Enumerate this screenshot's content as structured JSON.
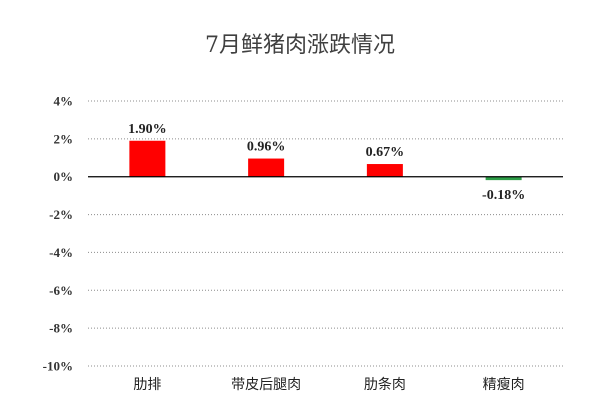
{
  "chart_data": {
    "type": "bar",
    "title": "7月鲜猪肉涨跌情况",
    "categories": [
      "肋排",
      "带皮后腿肉",
      "肋条肉",
      "精瘦肉"
    ],
    "values": [
      1.9,
      0.96,
      0.67,
      -0.18
    ],
    "data_labels": [
      "1.90%",
      "0.96%",
      "0.67%",
      "-0.18%"
    ],
    "ylim": [
      -10,
      4
    ],
    "yticks": [
      4,
      2,
      0,
      -2,
      -4,
      -6,
      -8,
      -10
    ],
    "ytick_labels": [
      "4%",
      "2%",
      "0%",
      "-2%",
      "-4%",
      "-6%",
      "-8%",
      "-10%"
    ],
    "grid": true,
    "colors": {
      "positive": "#ff0000",
      "negative": "#2e9e48"
    }
  }
}
